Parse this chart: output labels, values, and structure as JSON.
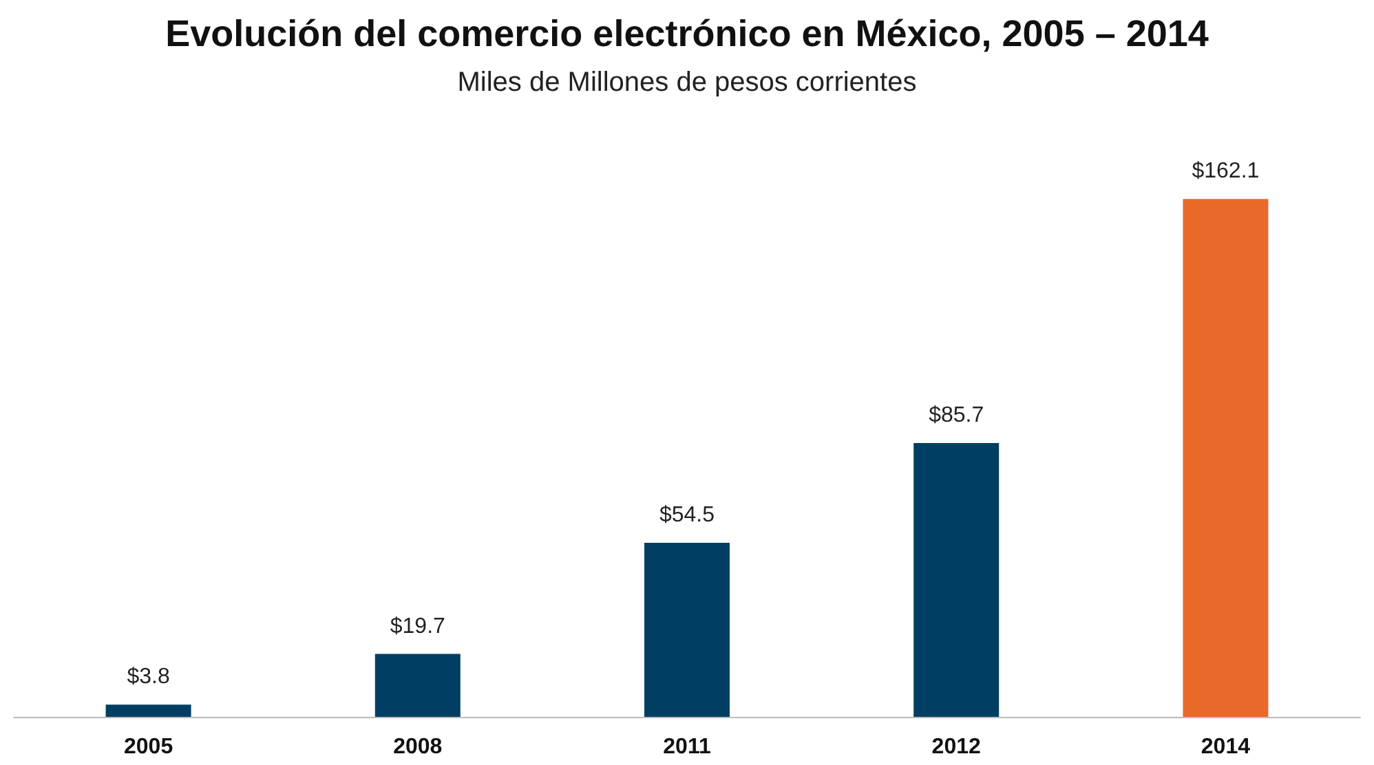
{
  "chart_data": {
    "type": "bar",
    "title": "Evolución del comercio electrónico en México, 2005 – 2014",
    "subtitle": "Miles de Millones de pesos corrientes",
    "categories": [
      "2005",
      "2008",
      "2011",
      "2012",
      "2014"
    ],
    "values": [
      3.8,
      19.7,
      54.5,
      85.7,
      162.1
    ],
    "colors": [
      "#003f63",
      "#003f63",
      "#003f63",
      "#003f63",
      "#e8692a"
    ],
    "value_labels": [
      "$3.8",
      "$19.7",
      "$54.5",
      "$85.7",
      "$162.1"
    ]
  }
}
